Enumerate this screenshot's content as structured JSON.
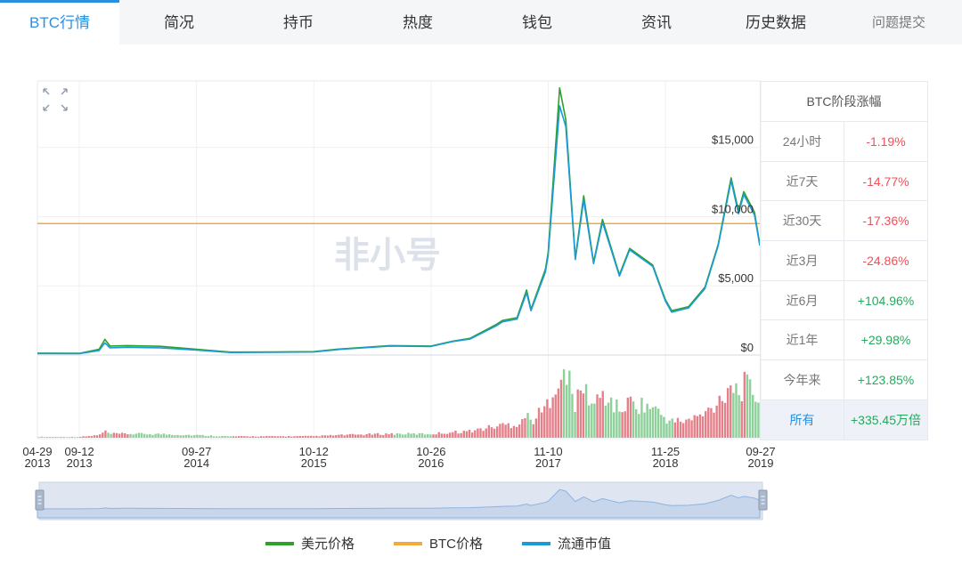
{
  "tabs": [
    {
      "label": "BTC行情",
      "active": true
    },
    {
      "label": "简况"
    },
    {
      "label": "持币"
    },
    {
      "label": "热度"
    },
    {
      "label": "钱包"
    },
    {
      "label": "资讯"
    },
    {
      "label": "历史数据"
    }
  ],
  "feedback_label": "问题提交",
  "watermark": "非小号",
  "stats": {
    "title": "BTC阶段涨幅",
    "rows": [
      {
        "label": "24小时",
        "value": "-1.19%",
        "trend": "neg"
      },
      {
        "label": "近7天",
        "value": "-14.77%",
        "trend": "neg"
      },
      {
        "label": "近30天",
        "value": "-17.36%",
        "trend": "neg"
      },
      {
        "label": "近3月",
        "value": "-24.86%",
        "trend": "neg"
      },
      {
        "label": "近6月",
        "value": "+104.96%",
        "trend": "pos"
      },
      {
        "label": "近1年",
        "value": "+29.98%",
        "trend": "pos"
      },
      {
        "label": "今年来",
        "value": "+123.85%",
        "trend": "pos"
      },
      {
        "label": "所有",
        "value": "+335.45万倍",
        "trend": "pos",
        "highlight": true
      }
    ]
  },
  "legend": [
    {
      "label": "美元价格",
      "color": "#2ea02e"
    },
    {
      "label": "BTC价格",
      "color": "#f3a93b"
    },
    {
      "label": "流通市值",
      "color": "#1a9bd7"
    }
  ],
  "colors": {
    "usd": "#2ea02e",
    "btc": "#f3a93b",
    "mcap": "#1a9bd7",
    "vol_up": "#e5808a",
    "vol_down": "#8ed09a",
    "accent": "#2b8fe0"
  },
  "chart_data": {
    "type": "line",
    "x_ticks": [
      {
        "date": "2013-04-29",
        "md": "04-29",
        "year": "2013"
      },
      {
        "date": "2013-09-12",
        "md": "09-12",
        "year": "2013"
      },
      {
        "date": "2014-09-27",
        "md": "09-27",
        "year": "2014"
      },
      {
        "date": "2015-10-12",
        "md": "10-12",
        "year": "2015"
      },
      {
        "date": "2016-10-26",
        "md": "10-26",
        "year": "2016"
      },
      {
        "date": "2017-11-10",
        "md": "11-10",
        "year": "2017"
      },
      {
        "date": "2018-11-25",
        "md": "11-25",
        "year": "2018"
      },
      {
        "date": "2019-09-27",
        "md": "09-27",
        "year": "2019"
      }
    ],
    "y_ticks": [
      {
        "value": 0,
        "label": "$0"
      },
      {
        "value": 5000,
        "label": "$5,000"
      },
      {
        "value": 10000,
        "label": "$10,000"
      },
      {
        "value": 15000,
        "label": "$15,000"
      }
    ],
    "ylim": [
      0,
      19800
    ],
    "grid": true,
    "legend_position": "bottom",
    "btc_price_level": 9500,
    "series": [
      {
        "name": "美元价格",
        "x": [
          "2013-04-29",
          "2013-09-12",
          "2013-11-15",
          "2013-12-04",
          "2013-12-20",
          "2014-02-15",
          "2014-06-01",
          "2014-09-27",
          "2015-01-15",
          "2015-06-01",
          "2015-10-12",
          "2016-01-01",
          "2016-06-15",
          "2016-10-26",
          "2017-01-05",
          "2017-03-01",
          "2017-05-25",
          "2017-06-15",
          "2017-08-01",
          "2017-09-01",
          "2017-09-15",
          "2017-11-01",
          "2017-11-10",
          "2017-12-17",
          "2018-01-06",
          "2018-02-06",
          "2018-03-05",
          "2018-04-06",
          "2018-05-05",
          "2018-06-29",
          "2018-08-01",
          "2018-10-15",
          "2018-11-25",
          "2018-12-15",
          "2019-02-08",
          "2019-04-02",
          "2019-05-15",
          "2019-06-26",
          "2019-07-20",
          "2019-08-06",
          "2019-09-10",
          "2019-09-27"
        ],
        "values": [
          135,
          125,
          420,
          1130,
          650,
          680,
          630,
          420,
          210,
          225,
          245,
          430,
          680,
          650,
          1000,
          1200,
          2200,
          2500,
          2700,
          4700,
          3300,
          6200,
          7400,
          19300,
          17000,
          7000,
          11500,
          6700,
          9800,
          5800,
          7700,
          6500,
          4000,
          3200,
          3500,
          4900,
          8000,
          12800,
          10400,
          11800,
          10300,
          8000
        ]
      },
      {
        "name": "流通市值",
        "x": [
          "2013-04-29",
          "2013-09-12",
          "2013-11-15",
          "2013-12-04",
          "2013-12-20",
          "2014-02-15",
          "2014-06-01",
          "2014-09-27",
          "2015-01-15",
          "2015-06-01",
          "2015-10-12",
          "2016-01-01",
          "2016-06-15",
          "2016-10-26",
          "2017-01-05",
          "2017-03-01",
          "2017-05-25",
          "2017-06-15",
          "2017-08-01",
          "2017-09-01",
          "2017-09-15",
          "2017-11-01",
          "2017-11-10",
          "2017-12-17",
          "2018-01-06",
          "2018-02-06",
          "2018-03-05",
          "2018-04-06",
          "2018-05-05",
          "2018-06-29",
          "2018-08-01",
          "2018-10-15",
          "2018-11-25",
          "2018-12-15",
          "2019-02-08",
          "2019-04-02",
          "2019-05-15",
          "2019-06-26",
          "2019-07-20",
          "2019-08-06",
          "2019-09-10",
          "2019-09-27"
        ],
        "values": [
          110,
          100,
          330,
          880,
          520,
          560,
          520,
          360,
          180,
          200,
          220,
          400,
          650,
          620,
          980,
          1150,
          2100,
          2400,
          2600,
          4500,
          3200,
          6000,
          7200,
          18000,
          16500,
          6900,
          11200,
          6600,
          9600,
          5700,
          7600,
          6400,
          3900,
          3100,
          3400,
          4800,
          7900,
          12600,
          10200,
          11600,
          10100,
          7900
        ]
      }
    ]
  }
}
